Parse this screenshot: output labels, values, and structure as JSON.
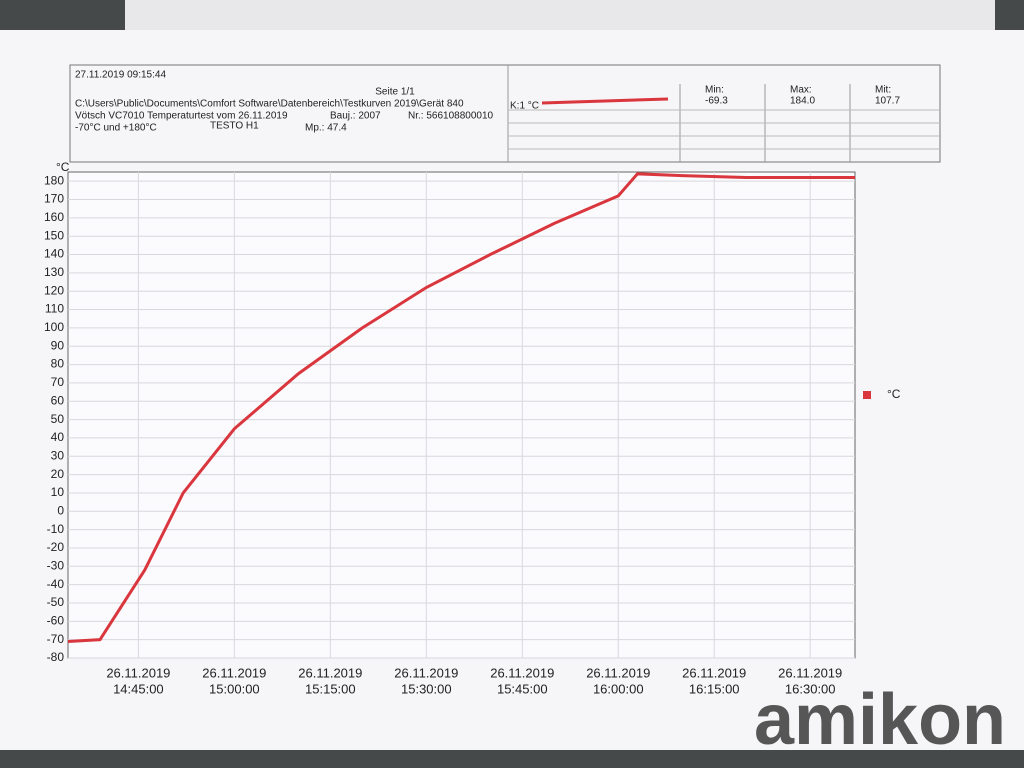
{
  "header": {
    "printed": "27.11.2019 09:15:44",
    "page": "Seite 1/1",
    "path": "C:\\Users\\Public\\Documents\\Comfort Software\\Datenbereich\\Testkurven 2019\\Gerät 840",
    "test": "Vötsch VC7010 Temperaturtest vom 26.11.2019",
    "year": "Bauj.: 2007",
    "number": "Nr.: 566108800010",
    "range": "-70°C und +180°C",
    "device": "TESTO H1",
    "mp": "Mp.: 47.4",
    "channel": "K:1 °C",
    "stats": [
      {
        "label": "Min:",
        "value": "-69.3"
      },
      {
        "label": "Max:",
        "value": "184.0"
      },
      {
        "label": "Mit:",
        "value": "107.7"
      }
    ]
  },
  "chart_data": {
    "type": "line",
    "y_unit": "°C",
    "x": [
      "26.11.2019 14:34:00",
      "26.11.2019 14:39:00",
      "26.11.2019 14:46:00",
      "26.11.2019 14:52:00",
      "26.11.2019 15:00:00",
      "26.11.2019 15:10:00",
      "26.11.2019 15:20:00",
      "26.11.2019 15:30:00",
      "26.11.2019 15:40:00",
      "26.11.2019 15:50:00",
      "26.11.2019 16:00:00",
      "26.11.2019 16:03:00",
      "26.11.2019 16:10:00",
      "26.11.2019 16:20:00",
      "26.11.2019 16:37:00"
    ],
    "series": [
      {
        "name": "°C",
        "color": "#d9363e",
        "values": [
          -71,
          -70,
          -32,
          10,
          45,
          75,
          100,
          122,
          140,
          157,
          172,
          184,
          183,
          182,
          182
        ]
      }
    ],
    "xlim": [
      "26.11.2019 14:34:00",
      "26.11.2019 16:37:00"
    ],
    "xticks": [
      {
        "value": "26.11.2019 14:45:00",
        "label": [
          "26.11.2019",
          "14:45:00"
        ]
      },
      {
        "value": "26.11.2019 15:00:00",
        "label": [
          "26.11.2019",
          "15:00:00"
        ]
      },
      {
        "value": "26.11.2019 15:15:00",
        "label": [
          "26.11.2019",
          "15:15:00"
        ]
      },
      {
        "value": "26.11.2019 15:30:00",
        "label": [
          "26.11.2019",
          "15:30:00"
        ]
      },
      {
        "value": "26.11.2019 15:45:00",
        "label": [
          "26.11.2019",
          "15:45:00"
        ]
      },
      {
        "value": "26.11.2019 16:00:00",
        "label": [
          "26.11.2019",
          "16:00:00"
        ]
      },
      {
        "value": "26.11.2019 16:15:00",
        "label": [
          "26.11.2019",
          "16:15:00"
        ]
      },
      {
        "value": "26.11.2019 16:30:00",
        "label": [
          "26.11.2019",
          "16:30:00"
        ]
      }
    ],
    "ylim": [
      -80,
      185
    ],
    "yticks": [
      -80,
      -70,
      -60,
      -50,
      -40,
      -30,
      -20,
      -10,
      0,
      10,
      20,
      30,
      40,
      50,
      60,
      70,
      80,
      90,
      100,
      110,
      120,
      130,
      140,
      150,
      160,
      170,
      180
    ],
    "grid": true,
    "legend": "right"
  },
  "watermark": "amikon"
}
